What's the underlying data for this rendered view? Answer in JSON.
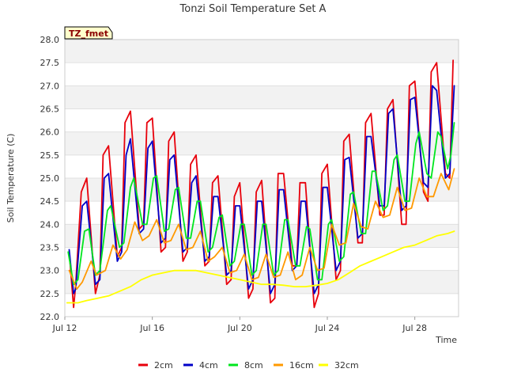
{
  "chart_data": {
    "type": "line",
    "title": "Tonzi Soil Temperature Set A",
    "xlabel": "Time",
    "ylabel": "Soil Temperature (C)",
    "badge": "TZ_fmet",
    "xlim": [
      12.0,
      30.0
    ],
    "ylim": [
      22.0,
      28.0
    ],
    "x_ticks": [
      {
        "value": 12,
        "label": "Jul 12"
      },
      {
        "value": 16,
        "label": "Jul 16"
      },
      {
        "value": 20,
        "label": "Jul 20"
      },
      {
        "value": 24,
        "label": "Jul 24"
      },
      {
        "value": 28,
        "label": "Jul 28"
      }
    ],
    "y_ticks": [
      {
        "value": 22.0,
        "label": "22.0"
      },
      {
        "value": 22.5,
        "label": "22.5"
      },
      {
        "value": 23.0,
        "label": "23.0"
      },
      {
        "value": 23.5,
        "label": "23.5"
      },
      {
        "value": 24.0,
        "label": "24.0"
      },
      {
        "value": 24.5,
        "label": "24.5"
      },
      {
        "value": 25.0,
        "label": "25.0"
      },
      {
        "value": 25.5,
        "label": "25.5"
      },
      {
        "value": 26.0,
        "label": "26.0"
      },
      {
        "value": 26.5,
        "label": "26.5"
      },
      {
        "value": 27.0,
        "label": "27.0"
      },
      {
        "value": 27.5,
        "label": "27.5"
      },
      {
        "value": 28.0,
        "label": "28.0"
      }
    ],
    "grid": true,
    "legend_position": "bottom",
    "series": [
      {
        "name": "2cm",
        "color": "#e8000b",
        "x": [
          12.2,
          12.4,
          12.5,
          12.75,
          13.0,
          13.4,
          13.6,
          13.75,
          14.0,
          14.4,
          14.6,
          14.75,
          15.0,
          15.4,
          15.6,
          15.75,
          16.0,
          16.4,
          16.6,
          16.75,
          17.0,
          17.4,
          17.6,
          17.75,
          18.0,
          18.4,
          18.6,
          18.75,
          19.0,
          19.4,
          19.6,
          19.75,
          20.0,
          20.4,
          20.6,
          20.75,
          21.0,
          21.4,
          21.6,
          21.75,
          22.0,
          22.4,
          22.6,
          22.75,
          23.0,
          23.4,
          23.6,
          23.75,
          24.0,
          24.4,
          24.6,
          24.75,
          25.0,
          25.4,
          25.6,
          25.75,
          26.0,
          26.4,
          26.6,
          26.75,
          27.0,
          27.4,
          27.6,
          27.75,
          28.0,
          28.4,
          28.6,
          28.75,
          29.0,
          29.4,
          29.6,
          29.75
        ],
        "y": [
          23.4,
          22.2,
          22.7,
          24.7,
          25.0,
          22.5,
          22.9,
          25.5,
          25.7,
          23.3,
          23.5,
          26.2,
          26.45,
          23.9,
          24.0,
          26.2,
          26.3,
          23.4,
          23.5,
          25.8,
          26.0,
          23.2,
          23.4,
          25.3,
          25.5,
          23.1,
          23.2,
          24.9,
          25.05,
          22.7,
          22.8,
          24.6,
          24.9,
          22.4,
          22.6,
          24.7,
          24.95,
          22.3,
          22.4,
          25.1,
          25.1,
          23.1,
          23.1,
          24.9,
          24.9,
          22.2,
          22.5,
          25.1,
          25.3,
          22.8,
          23.0,
          25.8,
          25.95,
          23.6,
          23.6,
          26.2,
          26.4,
          24.2,
          24.2,
          26.5,
          26.7,
          24.0,
          24.0,
          27.0,
          27.1,
          24.7,
          24.5,
          27.3,
          27.5,
          25.1,
          25.0,
          27.55
        ]
      },
      {
        "name": "4cm",
        "color": "#0000c8",
        "x": [
          12.2,
          12.4,
          12.5,
          12.8,
          13.0,
          13.4,
          13.6,
          13.8,
          14.0,
          14.4,
          14.6,
          14.8,
          15.0,
          15.4,
          15.6,
          15.8,
          16.0,
          16.4,
          16.6,
          16.8,
          17.0,
          17.4,
          17.6,
          17.8,
          18.0,
          18.4,
          18.6,
          18.8,
          19.0,
          19.4,
          19.6,
          19.8,
          20.0,
          20.4,
          20.6,
          20.8,
          21.0,
          21.4,
          21.6,
          21.8,
          22.0,
          22.4,
          22.6,
          22.8,
          23.0,
          23.4,
          23.6,
          23.8,
          24.0,
          24.4,
          24.6,
          24.8,
          25.0,
          25.4,
          25.6,
          25.8,
          26.0,
          26.4,
          26.6,
          26.8,
          27.0,
          27.4,
          27.6,
          27.8,
          28.0,
          28.4,
          28.6,
          28.8,
          29.0,
          29.4,
          29.6,
          29.8
        ],
        "y": [
          23.45,
          22.5,
          22.6,
          24.4,
          24.5,
          22.7,
          22.8,
          25.0,
          25.1,
          23.2,
          23.4,
          25.5,
          25.85,
          23.8,
          23.9,
          25.65,
          25.8,
          23.6,
          23.7,
          25.4,
          25.5,
          23.4,
          23.5,
          24.9,
          25.05,
          23.2,
          23.3,
          24.6,
          24.6,
          22.9,
          23.0,
          24.4,
          24.4,
          22.6,
          22.8,
          24.5,
          24.5,
          22.5,
          22.7,
          24.75,
          24.75,
          23.0,
          23.1,
          24.5,
          24.5,
          22.5,
          22.7,
          24.8,
          24.8,
          23.0,
          23.2,
          25.4,
          25.45,
          23.7,
          23.8,
          25.9,
          25.9,
          24.4,
          24.4,
          26.4,
          26.5,
          24.3,
          24.4,
          26.7,
          26.75,
          24.9,
          24.8,
          27.0,
          26.9,
          25.0,
          25.1,
          27.0
        ]
      },
      {
        "name": "8cm",
        "color": "#00e61e",
        "x": [
          12.15,
          12.4,
          12.6,
          12.9,
          13.1,
          13.4,
          13.6,
          13.95,
          14.1,
          14.5,
          14.7,
          15.0,
          15.15,
          15.55,
          15.75,
          16.05,
          16.2,
          16.55,
          16.75,
          17.05,
          17.2,
          17.55,
          17.75,
          18.05,
          18.2,
          18.55,
          18.75,
          19.05,
          19.2,
          19.55,
          19.75,
          20.05,
          20.2,
          20.55,
          20.75,
          21.05,
          21.2,
          21.55,
          21.75,
          22.05,
          22.2,
          22.55,
          22.75,
          23.05,
          23.2,
          23.55,
          23.75,
          24.05,
          24.2,
          24.55,
          24.75,
          25.05,
          25.2,
          25.55,
          25.75,
          26.05,
          26.2,
          26.55,
          26.75,
          27.05,
          27.2,
          27.55,
          27.75,
          28.05,
          28.2,
          28.55,
          28.75,
          29.05,
          29.2,
          29.5,
          29.65,
          29.8
        ],
        "y": [
          23.4,
          22.7,
          22.8,
          23.85,
          23.9,
          22.9,
          23.0,
          24.3,
          24.4,
          23.5,
          23.6,
          24.8,
          25.0,
          24.0,
          24.0,
          25.0,
          25.05,
          23.85,
          23.9,
          24.75,
          24.8,
          23.7,
          23.7,
          24.5,
          24.5,
          23.4,
          23.5,
          24.15,
          24.2,
          23.1,
          23.2,
          24.0,
          24.0,
          22.9,
          23.0,
          24.0,
          24.0,
          22.9,
          23.0,
          24.1,
          24.1,
          23.1,
          23.1,
          23.95,
          23.9,
          22.8,
          22.8,
          24.0,
          24.1,
          23.2,
          23.3,
          24.65,
          24.7,
          23.8,
          23.8,
          25.15,
          25.15,
          24.3,
          24.4,
          25.4,
          25.5,
          24.5,
          24.5,
          25.75,
          26.0,
          25.1,
          25.0,
          26.0,
          25.9,
          25.2,
          25.5,
          26.2
        ]
      },
      {
        "name": "16cm",
        "color": "#ff9900",
        "x": [
          12.2,
          12.55,
          12.8,
          13.2,
          13.45,
          13.85,
          14.2,
          14.55,
          14.85,
          15.2,
          15.55,
          15.85,
          16.2,
          16.55,
          16.85,
          17.2,
          17.55,
          17.85,
          18.2,
          18.55,
          18.85,
          19.2,
          19.55,
          19.85,
          20.2,
          20.55,
          20.85,
          21.2,
          21.55,
          21.85,
          22.2,
          22.55,
          22.85,
          23.2,
          23.55,
          23.85,
          24.2,
          24.55,
          24.85,
          25.2,
          25.55,
          25.85,
          26.2,
          26.55,
          26.85,
          27.2,
          27.55,
          27.85,
          28.2,
          28.55,
          28.85,
          29.2,
          29.55,
          29.8
        ],
        "y": [
          23.0,
          22.6,
          22.75,
          23.2,
          22.9,
          23.0,
          23.55,
          23.25,
          23.45,
          24.05,
          23.65,
          23.75,
          24.1,
          23.6,
          23.65,
          24.0,
          23.45,
          23.5,
          23.85,
          23.2,
          23.3,
          23.5,
          22.95,
          23.0,
          23.35,
          22.8,
          22.85,
          23.35,
          22.85,
          22.9,
          23.4,
          22.8,
          22.9,
          23.5,
          23.0,
          23.05,
          24.0,
          23.55,
          23.6,
          24.45,
          23.95,
          23.9,
          24.5,
          24.15,
          24.2,
          24.8,
          24.3,
          24.35,
          25.0,
          24.6,
          24.6,
          25.1,
          24.75,
          25.2
        ]
      },
      {
        "name": "32cm",
        "color": "#ffff00",
        "x": [
          12.1,
          12.6,
          13.0,
          13.5,
          14.0,
          14.5,
          15.0,
          15.5,
          16.0,
          16.5,
          17.0,
          17.5,
          18.0,
          18.5,
          19.0,
          19.5,
          20.0,
          20.5,
          21.0,
          21.5,
          22.0,
          22.5,
          23.0,
          23.5,
          24.0,
          24.5,
          25.0,
          25.5,
          26.0,
          26.5,
          27.0,
          27.5,
          28.0,
          28.5,
          29.0,
          29.5,
          29.8
        ],
        "y": [
          22.3,
          22.3,
          22.35,
          22.4,
          22.45,
          22.55,
          22.65,
          22.8,
          22.9,
          22.95,
          23.0,
          23.0,
          23.0,
          22.95,
          22.9,
          22.85,
          22.8,
          22.75,
          22.7,
          22.7,
          22.68,
          22.65,
          22.65,
          22.68,
          22.72,
          22.8,
          22.95,
          23.1,
          23.2,
          23.3,
          23.4,
          23.5,
          23.55,
          23.65,
          23.75,
          23.8,
          23.85
        ]
      }
    ]
  }
}
